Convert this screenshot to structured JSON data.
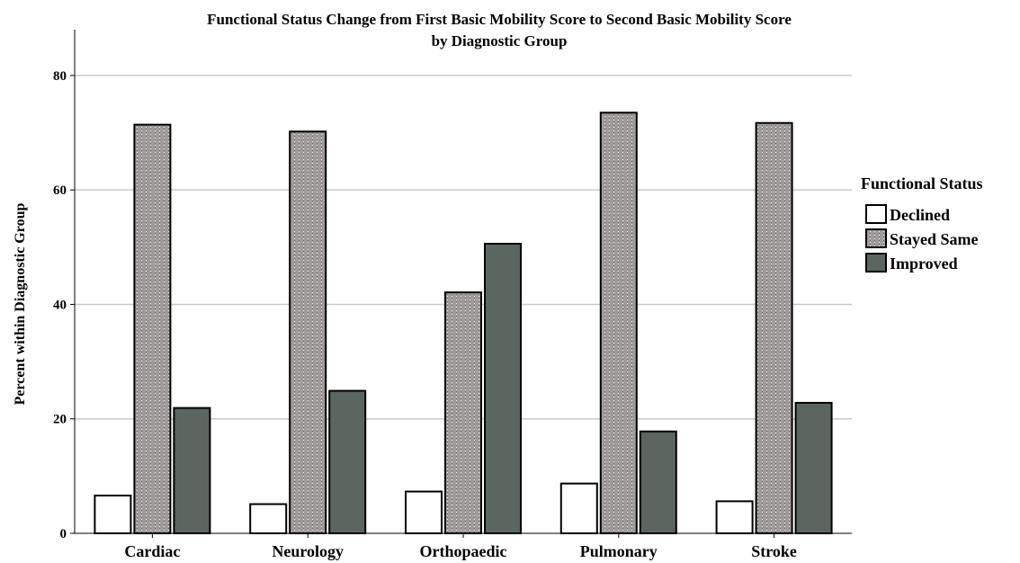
{
  "chart_data": {
    "type": "bar",
    "title": "Functional Status Change from First Basic Mobility Score to Second Basic Mobility Score",
    "subtitle": "by Diagnostic Group",
    "ylabel": "Percent within Diagnostic Group",
    "xlabel": "",
    "ylim": [
      0,
      88
    ],
    "yticks": [
      0,
      20,
      40,
      60,
      80
    ],
    "grid": "horizontal",
    "legend_title": "Functional Status",
    "legend_position": "right",
    "categories": [
      "Cardiac",
      "Neurology",
      "Orthopaedic",
      "Pulmonary",
      "Stroke"
    ],
    "series": [
      {
        "name": "Declined",
        "values": [
          6.6,
          5.1,
          7.3,
          8.7,
          5.6
        ],
        "color": "#ffffff",
        "pattern": "none"
      },
      {
        "name": "Stayed Same",
        "values": [
          71.4,
          70.2,
          42.1,
          73.5,
          71.7
        ],
        "color": "#a09b9b",
        "pattern": "dotted"
      },
      {
        "name": "Improved",
        "values": [
          21.9,
          24.9,
          50.6,
          17.8,
          22.8
        ],
        "color": "#5b6660",
        "pattern": "none"
      }
    ]
  }
}
